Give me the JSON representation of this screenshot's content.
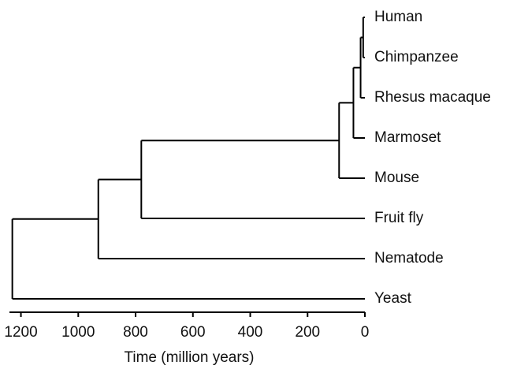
{
  "chart_data": {
    "type": "dendrogram",
    "x_label": "Time (million years)",
    "xlim": [
      1240,
      0
    ],
    "xticks": [
      1200,
      1000,
      800,
      600,
      400,
      200,
      0
    ],
    "color": "#000000",
    "tree": {
      "time": 1230,
      "children": [
        {
          "time": 930,
          "children": [
            {
              "time": 780,
              "children": [
                {
                  "time": 90,
                  "children": [
                    {
                      "time": 40,
                      "children": [
                        {
                          "time": 15,
                          "children": [
                            {
                              "time": 6,
                              "children": [
                                {
                                  "name": "Human",
                                  "time": 0
                                },
                                {
                                  "name": "Chimpanzee",
                                  "time": 0
                                }
                              ]
                            },
                            {
                              "name": "Rhesus macaque",
                              "time": 0
                            }
                          ]
                        },
                        {
                          "name": "Marmoset",
                          "time": 0
                        }
                      ]
                    },
                    {
                      "name": "Mouse",
                      "time": 0
                    }
                  ]
                },
                {
                  "name": "Fruit fly",
                  "time": 0
                }
              ]
            },
            {
              "name": "Nematode",
              "time": 0
            }
          ]
        },
        {
          "name": "Yeast",
          "time": 0
        }
      ]
    }
  }
}
